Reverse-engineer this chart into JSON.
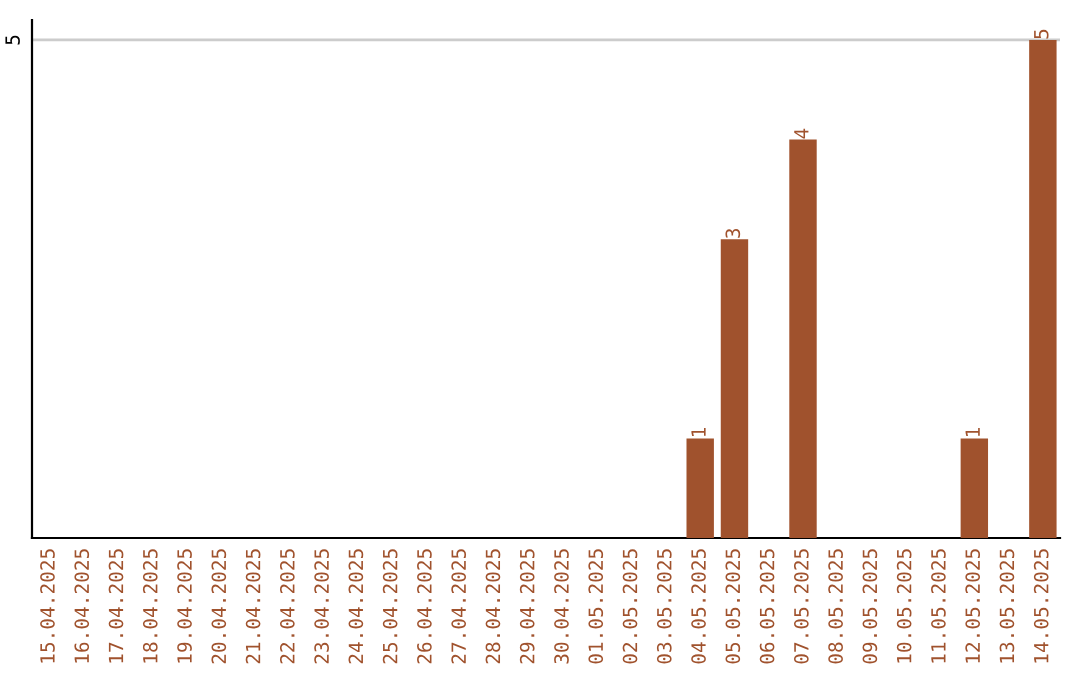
{
  "chart_data": {
    "type": "bar",
    "categories": [
      "15.04.2025",
      "16.04.2025",
      "17.04.2025",
      "18.04.2025",
      "19.04.2025",
      "20.04.2025",
      "21.04.2025",
      "22.04.2025",
      "23.04.2025",
      "24.04.2025",
      "25.04.2025",
      "26.04.2025",
      "27.04.2025",
      "28.04.2025",
      "29.04.2025",
      "30.04.2025",
      "01.05.2025",
      "02.05.2025",
      "03.05.2025",
      "04.05.2025",
      "05.05.2025",
      "06.05.2025",
      "07.05.2025",
      "08.05.2025",
      "09.05.2025",
      "10.05.2025",
      "11.05.2025",
      "12.05.2025",
      "13.05.2025",
      "14.05.2025"
    ],
    "values": [
      null,
      null,
      null,
      null,
      null,
      null,
      null,
      null,
      null,
      null,
      null,
      null,
      null,
      null,
      null,
      null,
      null,
      null,
      null,
      1,
      3,
      null,
      4,
      null,
      null,
      null,
      null,
      1,
      null,
      5
    ],
    "value_labels": [
      null,
      null,
      null,
      null,
      null,
      null,
      null,
      null,
      null,
      null,
      null,
      null,
      null,
      null,
      null,
      null,
      null,
      null,
      null,
      "1",
      "3",
      null,
      "4",
      null,
      null,
      null,
      null,
      "1",
      null,
      "5"
    ],
    "color": "#a0522d",
    "ylim": [
      0,
      5.2
    ],
    "ref_lines": [
      {
        "axis": "y",
        "value": 5,
        "label": "5",
        "color": "#cccccc"
      }
    ]
  }
}
